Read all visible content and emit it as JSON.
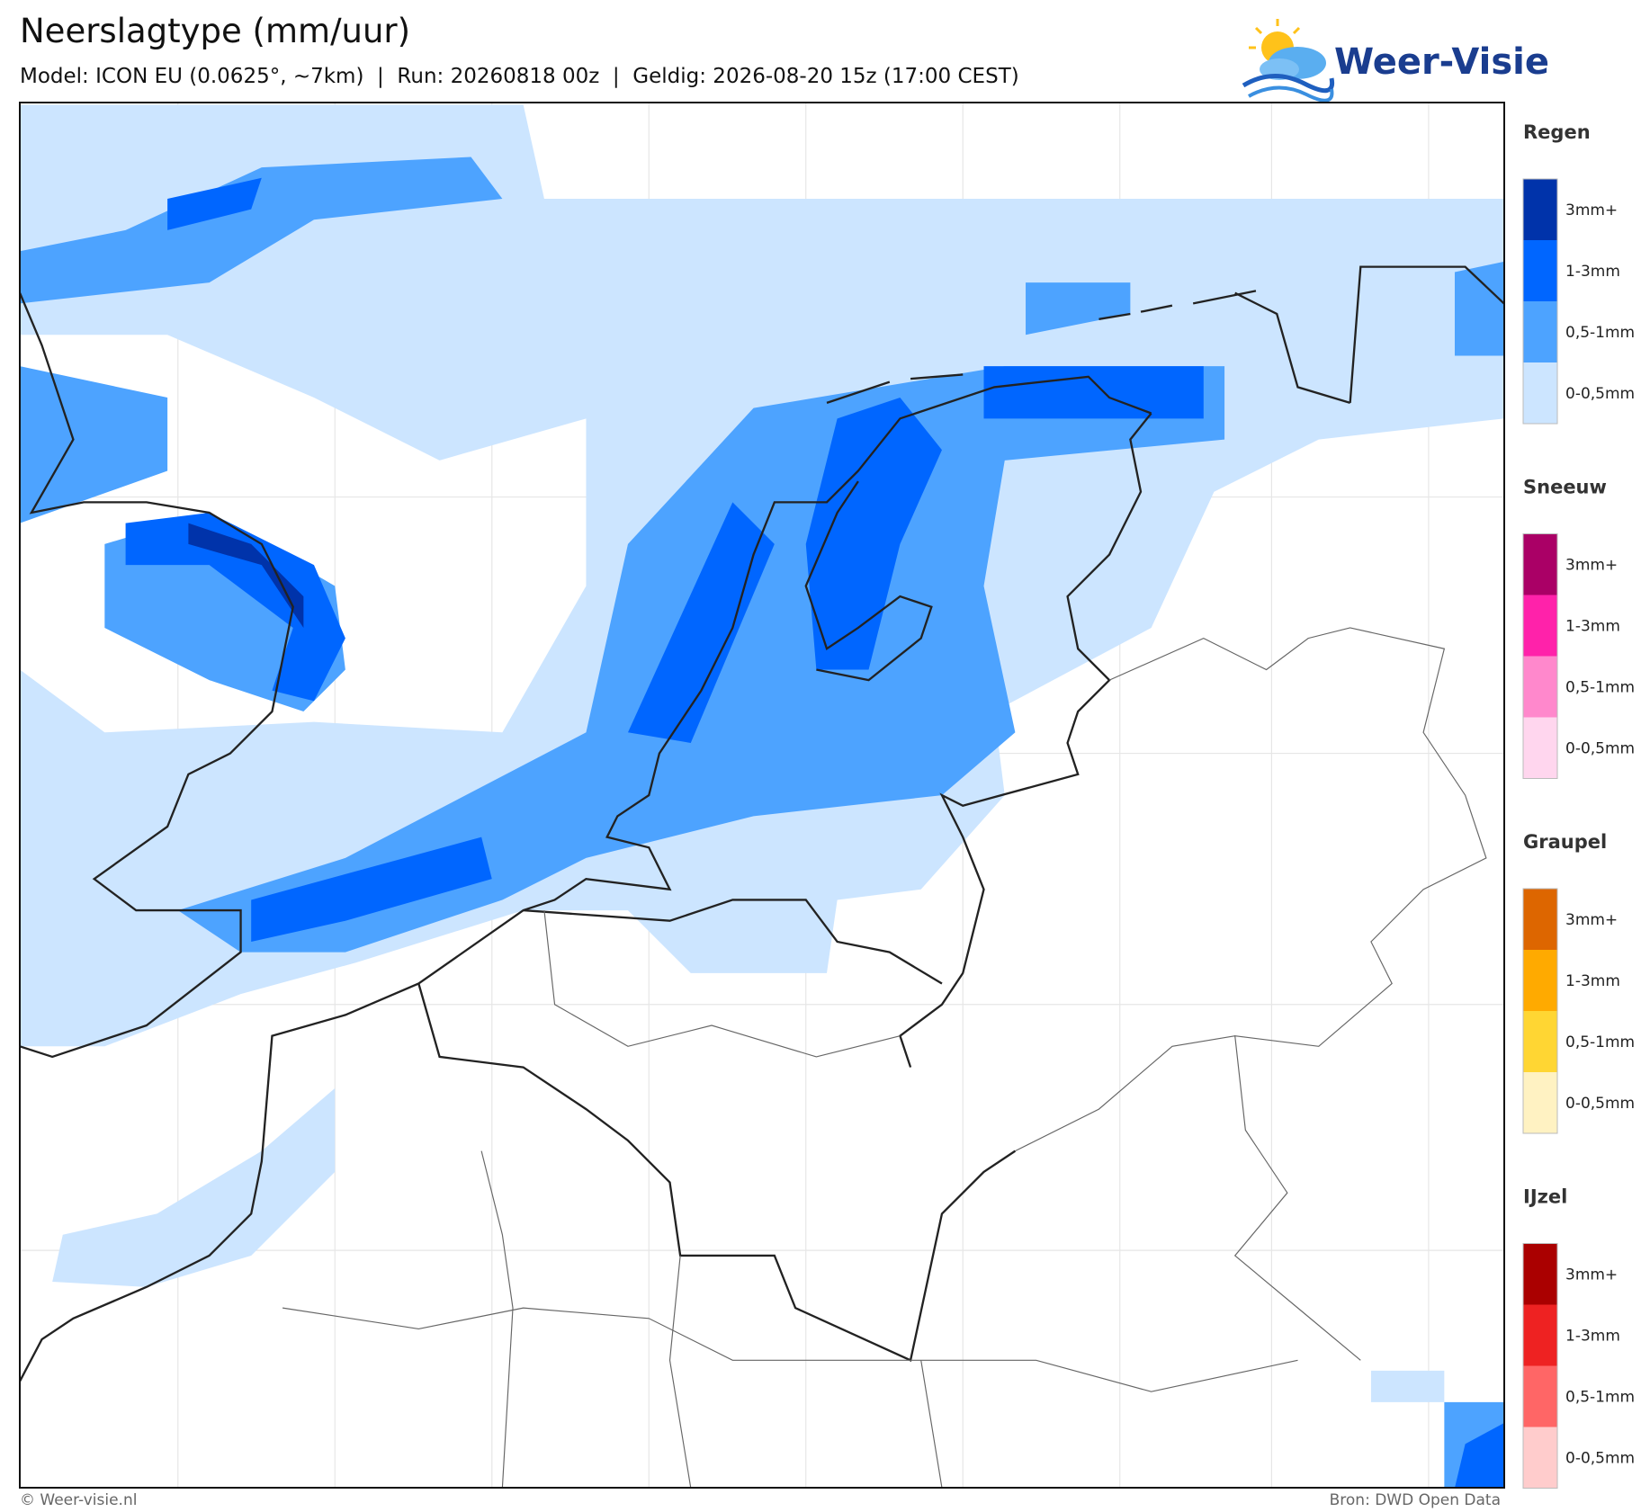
{
  "header": {
    "title": "Neerslagtype (mm/uur)",
    "subtitle": "Model: ICON EU (0.0625°, ~7km)  |  Run: 20260818 00z  |  Geldig: 2026-08-20 15z (17:00 CEST)"
  },
  "logo": {
    "text": "Weer-Visie"
  },
  "legend": [
    {
      "title": "Regen",
      "items": [
        {
          "label": "3mm+",
          "color": "#0033aa"
        },
        {
          "label": "1-3mm",
          "color": "#0066ff"
        },
        {
          "label": "0,5-1mm",
          "color": "#4da3ff"
        },
        {
          "label": "0-0,5mm",
          "color": "#cce5ff"
        }
      ]
    },
    {
      "title": "Sneeuw",
      "items": [
        {
          "label": "3mm+",
          "color": "#aa0066"
        },
        {
          "label": "1-3mm",
          "color": "#ff22aa"
        },
        {
          "label": "0,5-1mm",
          "color": "#ff88cc"
        },
        {
          "label": "0-0,5mm",
          "color": "#ffd6ee"
        }
      ]
    },
    {
      "title": "Graupel",
      "items": [
        {
          "label": "3mm+",
          "color": "#dd6600"
        },
        {
          "label": "1-3mm",
          "color": "#ffaa00"
        },
        {
          "label": "0,5-1mm",
          "color": "#ffd633"
        },
        {
          "label": "0-0,5mm",
          "color": "#fff2c2"
        }
      ]
    },
    {
      "title": "IJzel",
      "items": [
        {
          "label": "3mm+",
          "color": "#aa0000"
        },
        {
          "label": "1-3mm",
          "color": "#ee2222"
        },
        {
          "label": "0,5-1mm",
          "color": "#ff6666"
        },
        {
          "label": "0-0,5mm",
          "color": "#ffcccc"
        }
      ]
    }
  ],
  "footer": {
    "left": "© Weer-visie.nl",
    "right": "Bron: DWD Open Data"
  }
}
